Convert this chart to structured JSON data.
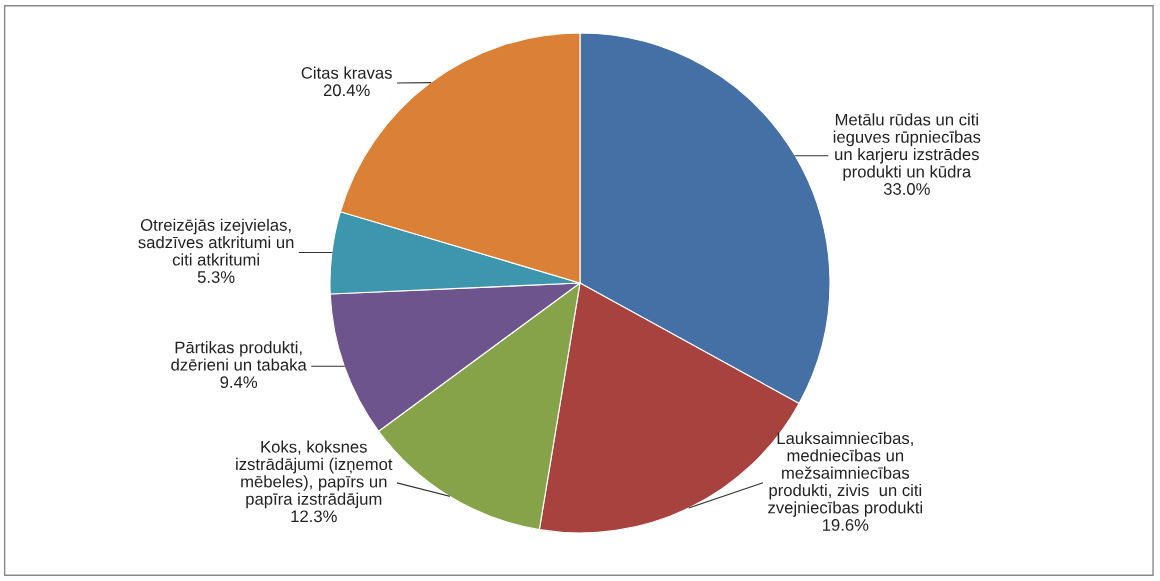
{
  "chart_data": {
    "type": "pie",
    "categories": [
      "Metālu rūdas un citi\nieguves rūpniecības\nun karjeru izstrādes\nprodukti un kūdra",
      "Lauksaimniecības,\nmedniecības un\nmežsaimniecības\nprodukti, zivis  un citi\nzvejniecības produkti",
      "Koks, koksnes\nizstrādājumi (izņemot\nmēbeles), papīrs un\npapīra izstrādājum",
      "Pārtikas produkti,\ndzērieni un tabaka",
      "Otreizējās izejvielas,\nsadzīves atkritumi un\nciti atkritumi",
      "Citas kravas"
    ],
    "values": [
      33.0,
      19.6,
      12.3,
      9.4,
      5.3,
      20.4
    ],
    "value_labels": [
      "33.0%",
      "19.6%",
      "12.3%",
      "9.4%",
      "5.3%",
      "20.4%"
    ],
    "colors": [
      "#4470a6",
      "#a8423f",
      "#86a34a",
      "#6e548d",
      "#3d96ae",
      "#da8137"
    ]
  }
}
